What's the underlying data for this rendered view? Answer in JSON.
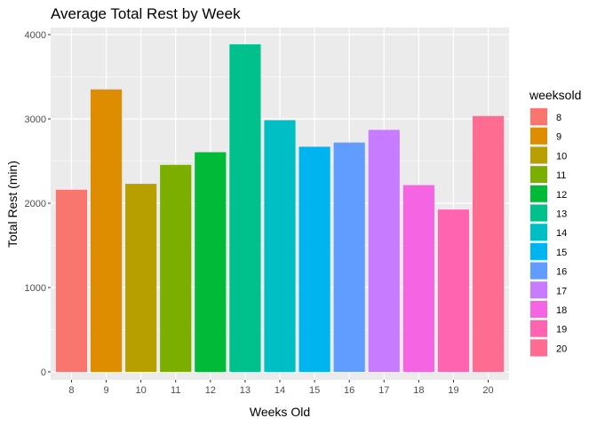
{
  "chart_data": {
    "type": "bar",
    "title": "Average Total Rest by Week",
    "xlabel": "Weeks Old",
    "ylabel": "Total Rest (min)",
    "categories": [
      "8",
      "9",
      "10",
      "11",
      "12",
      "13",
      "14",
      "15",
      "16",
      "17",
      "18",
      "19",
      "20"
    ],
    "values": [
      2160,
      3350,
      2230,
      2455,
      2605,
      3885,
      2985,
      2670,
      2720,
      2870,
      2215,
      1925,
      3035
    ],
    "ylim": [
      0,
      4000
    ],
    "yticks": [
      0,
      1000,
      2000,
      3000,
      4000
    ],
    "ytick_labels": [
      "0",
      "1000",
      "2000",
      "3000",
      "4000"
    ],
    "grid": true,
    "legend": {
      "title": "weeksold",
      "position": "right",
      "entries": [
        "8",
        "9",
        "10",
        "11",
        "12",
        "13",
        "14",
        "15",
        "16",
        "17",
        "18",
        "19",
        "20"
      ]
    },
    "colors": [
      "#F8766D",
      "#DE8C00",
      "#B79F00",
      "#7CAE00",
      "#00BA38",
      "#00C08B",
      "#00BFC4",
      "#00B4F0",
      "#619CFF",
      "#C77CFF",
      "#F564E3",
      "#FF64B0",
      "#FF6C91"
    ],
    "panel_background": "#EBEBEB",
    "grid_color": "#FFFFFF"
  }
}
